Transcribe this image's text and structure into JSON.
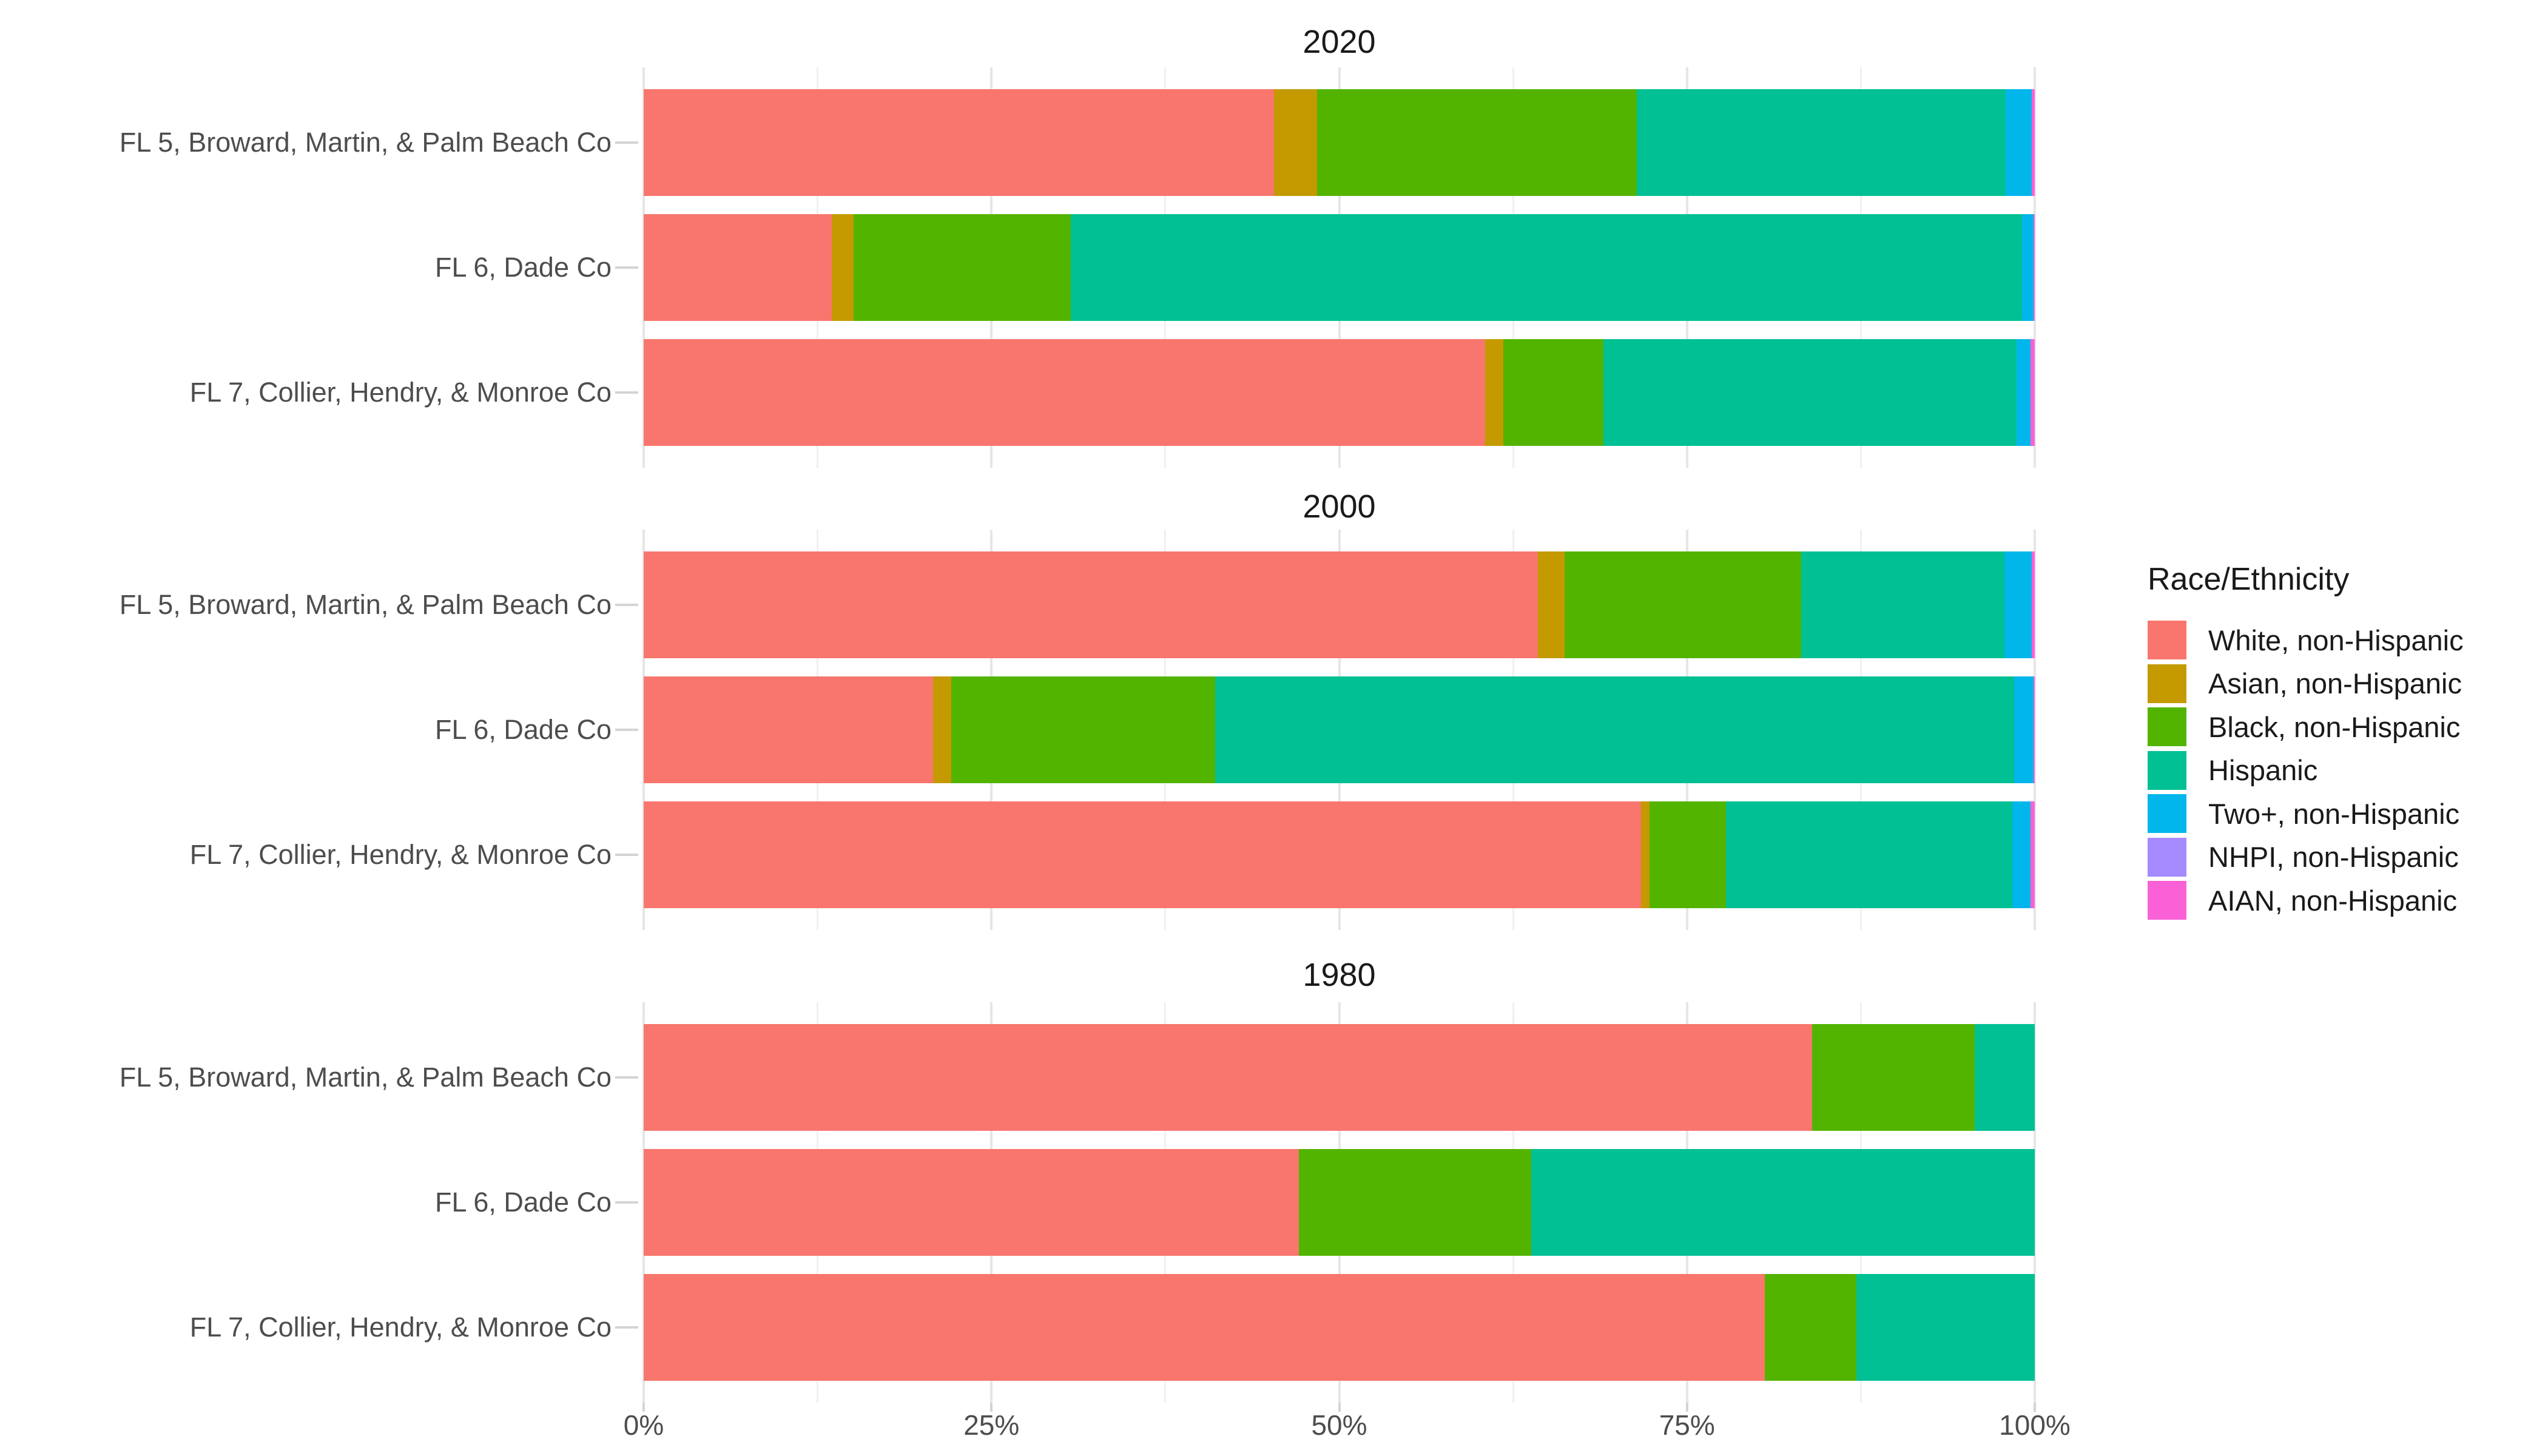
{
  "chart_data": {
    "type": "bar",
    "orientation": "horizontal",
    "stacked": true,
    "unit": "%",
    "legend_title": "Race/Ethnicity",
    "legend_position": "right",
    "grid": true,
    "x_axis": {
      "tick_labels": [
        "0%",
        "25%",
        "50%",
        "75%",
        "100%"
      ],
      "tick_values": [
        0,
        25,
        50,
        75,
        100
      ],
      "minor_gridlines": [
        12.5,
        37.5,
        62.5,
        87.5
      ],
      "range": [
        0,
        100
      ]
    },
    "series": [
      {
        "name": "White, non-Hispanic",
        "key": "white",
        "color": "#F8766D"
      },
      {
        "name": "Asian, non-Hispanic",
        "key": "asian",
        "color": "#C49A00"
      },
      {
        "name": "Black, non-Hispanic",
        "key": "black",
        "color": "#53B400"
      },
      {
        "name": "Hispanic",
        "key": "hispanic",
        "color": "#00C094"
      },
      {
        "name": "Two+, non-Hispanic",
        "key": "two-plus",
        "color": "#00B6EB"
      },
      {
        "name": "NHPI, non-Hispanic",
        "key": "nhpi",
        "color": "#A58AFF"
      },
      {
        "name": "AIAN, non-Hispanic",
        "key": "aian",
        "color": "#FB61D7"
      }
    ],
    "categories": [
      "FL 5, Broward, Martin, & Palm Beach Co",
      "FL 6, Dade Co",
      "FL 7, Collier, Hendry, & Monroe Co"
    ],
    "facets": [
      {
        "title": "2020",
        "rows": [
          [
            45.3,
            3.1,
            23.0,
            26.5,
            1.9,
            0.0,
            0.2
          ],
          [
            13.5,
            1.6,
            15.6,
            68.4,
            0.8,
            0.0,
            0.1
          ],
          [
            60.5,
            1.3,
            7.2,
            29.7,
            1.0,
            0.0,
            0.3
          ]
        ]
      },
      {
        "title": "2000",
        "rows": [
          [
            64.3,
            1.9,
            17.0,
            14.6,
            2.0,
            0.0,
            0.2
          ],
          [
            20.8,
            1.3,
            19.0,
            57.4,
            1.4,
            0.0,
            0.1
          ],
          [
            71.7,
            0.6,
            5.5,
            20.6,
            1.3,
            0.0,
            0.3
          ]
        ]
      },
      {
        "title": "1980",
        "rows": [
          [
            84.0,
            0.0,
            11.7,
            4.3,
            0.0,
            0.0,
            0.0
          ],
          [
            47.1,
            0.0,
            16.7,
            36.2,
            0.0,
            0.0,
            0.0
          ],
          [
            80.6,
            0.0,
            6.6,
            12.8,
            0.0,
            0.0,
            0.0
          ]
        ]
      }
    ]
  }
}
